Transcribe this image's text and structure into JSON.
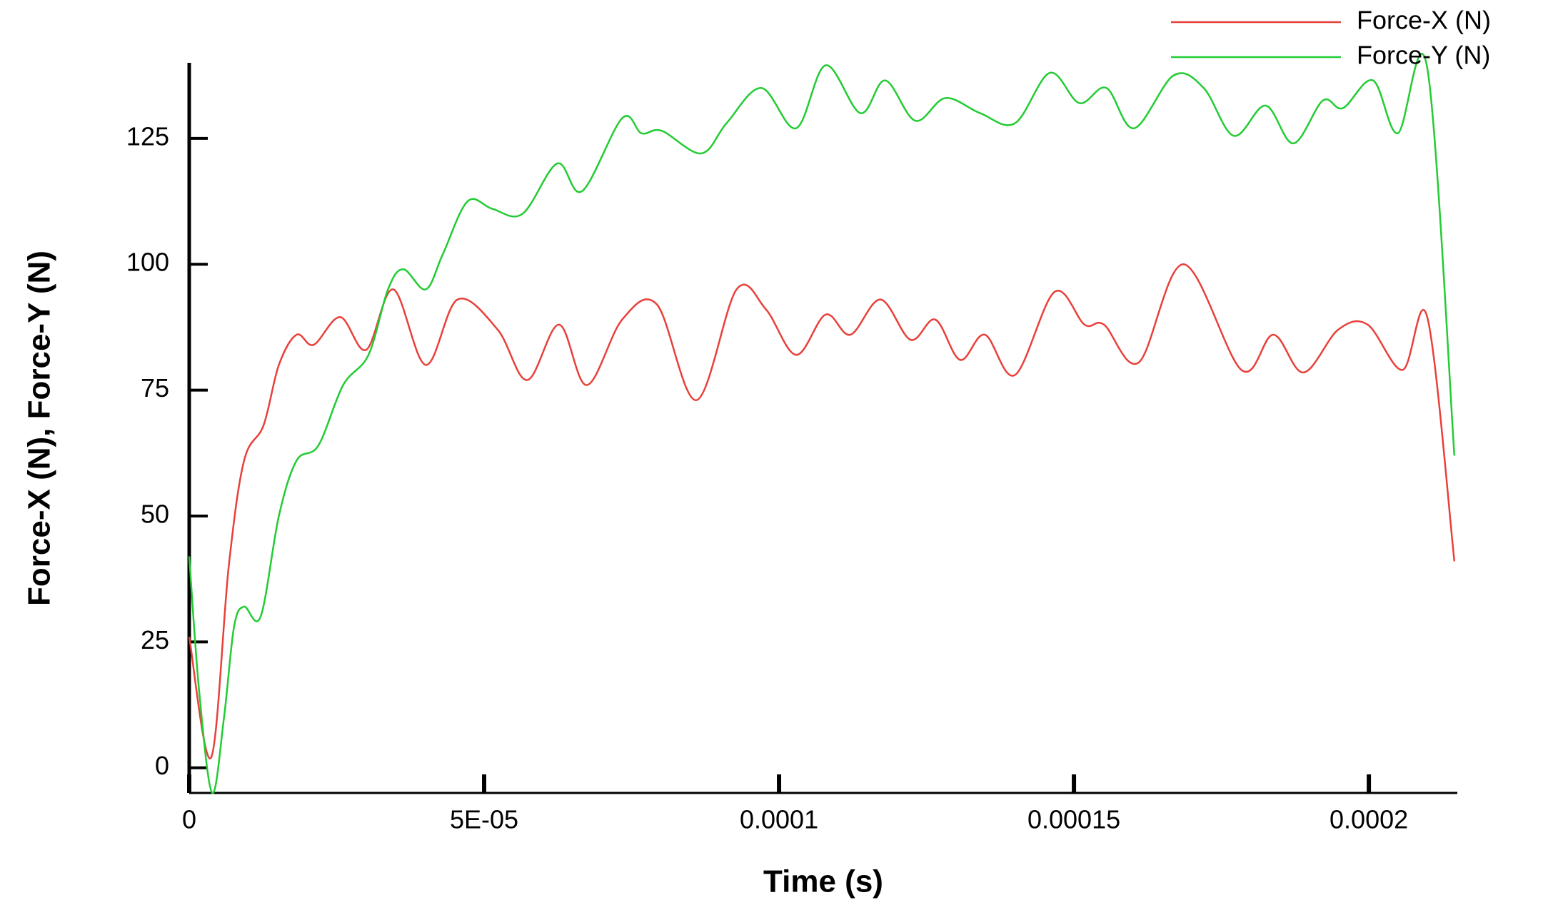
{
  "chart_data": {
    "type": "line",
    "xlabel": "Time (s)",
    "ylabel": "Force-X (N), Force-Y (N)",
    "xlim": [
      0,
      0.000215
    ],
    "ylim": [
      -5,
      140
    ],
    "xticks": [
      0,
      {
        "value": 5e-05,
        "label": "5E-05"
      },
      0.0001,
      0.00015,
      0.0002
    ],
    "yticks": [
      0,
      25,
      50,
      75,
      100,
      125
    ],
    "grid": false,
    "legend": "upper right",
    "series": [
      {
        "name": "Force-X (N)",
        "color": "#e8403a",
        "x": [
          0,
          3.7e-06,
          6.7e-06,
          9.3e-06,
          1.26e-05,
          1.52e-05,
          1.82e-05,
          2.11e-05,
          2.56e-05,
          3e-05,
          3.46e-05,
          4.01e-05,
          4.55e-05,
          5.23e-05,
          5.73e-05,
          6.27e-05,
          6.74e-05,
          7.34e-05,
          7.93e-05,
          8.6e-05,
          9.28e-05,
          9.78e-05,
          0.0001029,
          0.0001079,
          0.0001121,
          0.0001172,
          0.0001223,
          0.0001265,
          0.0001307,
          0.0001349,
          0.00014,
          0.0001467,
          0.0001518,
          0.0001551,
          0.000161,
          0.0001686,
          0.0001784,
          0.0001838,
          0.0001889,
          0.0001948,
          0.0001998,
          0.0002057,
          0.0002099,
          0.0002145
        ],
        "values": [
          26,
          2,
          40,
          61,
          68,
          80,
          86,
          84,
          89.5,
          83,
          95,
          80,
          93,
          87,
          77,
          88,
          76,
          89,
          92,
          73,
          95,
          91,
          82,
          90,
          86,
          93,
          85,
          89,
          81,
          86,
          78,
          94.5,
          88,
          88,
          80.5,
          100,
          79,
          86,
          78.5,
          87,
          88,
          79,
          89.5,
          41
        ]
      },
      {
        "name": "Force-Y (N)",
        "color": "#22cc33",
        "x": [
          0,
          1.7e-06,
          3.9e-06,
          5.9e-06,
          7.6e-06,
          9.3e-06,
          1.21e-05,
          1.52e-05,
          1.82e-05,
          2.19e-05,
          2.61e-05,
          3.04e-05,
          3.37e-05,
          3.63e-05,
          4.01e-05,
          4.3e-05,
          4.72e-05,
          5.14e-05,
          5.65e-05,
          6.24e-05,
          6.66e-05,
          7.34e-05,
          7.67e-05,
          8.01e-05,
          8.68e-05,
          9.11e-05,
          9.7e-05,
          0.0001029,
          0.0001079,
          0.0001138,
          0.000118,
          0.0001231,
          0.0001282,
          0.0001341,
          0.00014,
          0.0001459,
          0.0001509,
          0.0001555,
          0.0001602,
          0.0001669,
          0.000172,
          0.0001771,
          0.0001825,
          0.0001872,
          0.0001922,
          0.0001956,
          0.0002007,
          0.0002049,
          0.0002099,
          0.0002145
        ],
        "values": [
          42,
          15,
          -5,
          10,
          28,
          32,
          30,
          50,
          61,
          64,
          76,
          82,
          95,
          99,
          95,
          102,
          112.5,
          111,
          110,
          120,
          114.5,
          129,
          126,
          126.5,
          122,
          128,
          135,
          127,
          139.5,
          130,
          136.5,
          128.5,
          133,
          130,
          128,
          138,
          132,
          135,
          127,
          137.5,
          135,
          125.5,
          131.5,
          124,
          132.5,
          131,
          136.5,
          126,
          139,
          62
        ]
      }
    ]
  }
}
